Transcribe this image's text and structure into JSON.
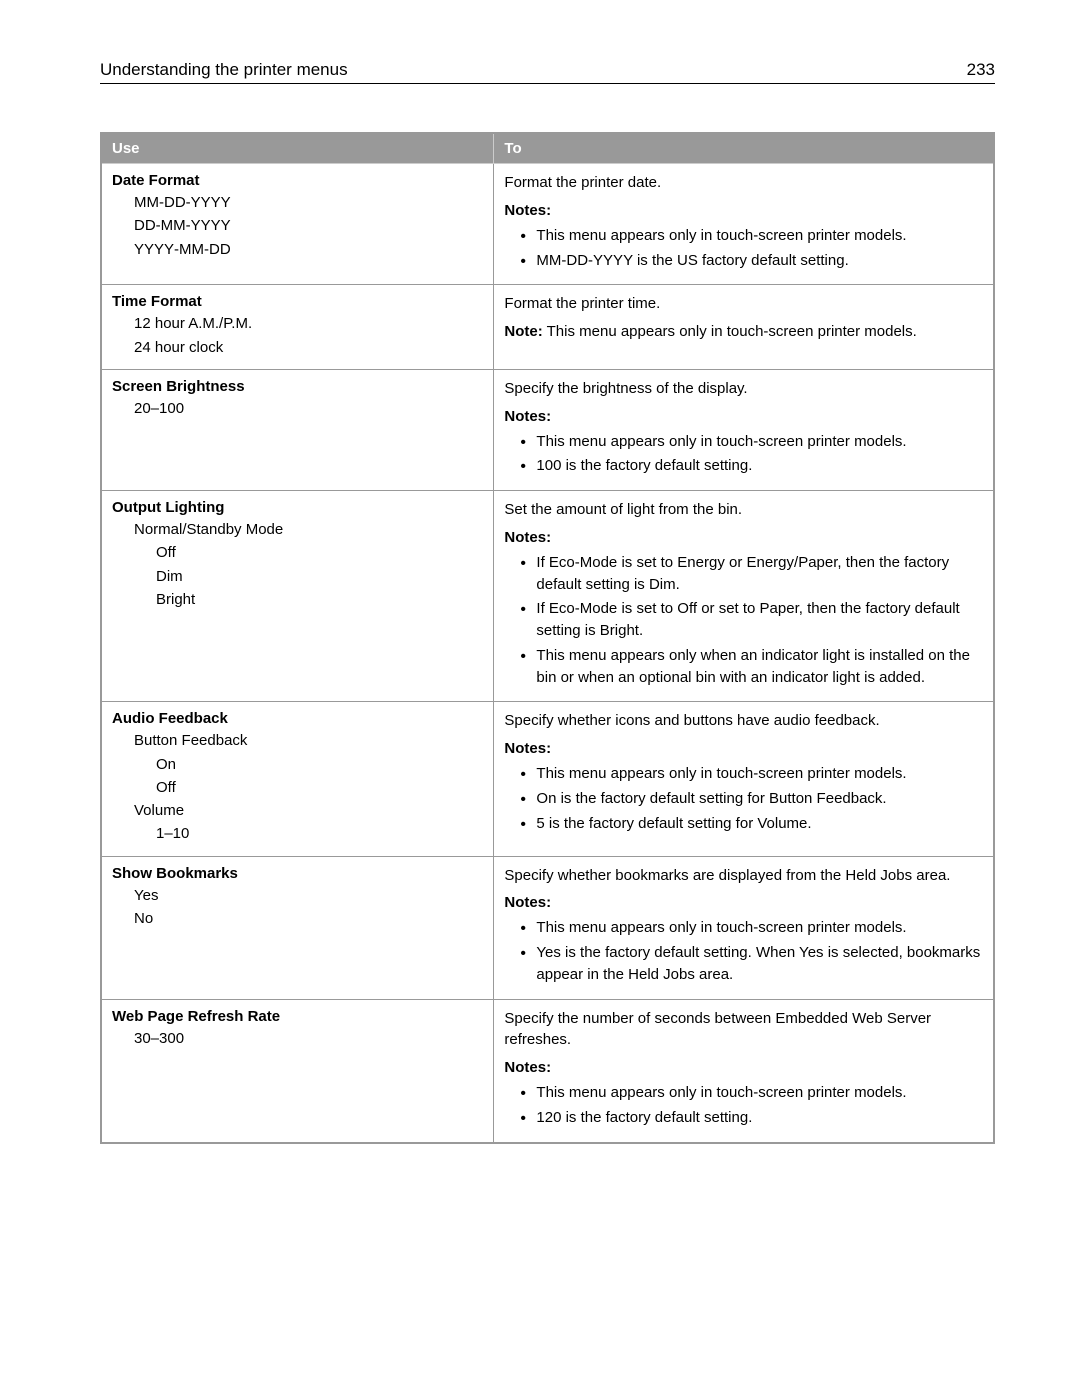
{
  "header": {
    "title": "Understanding the printer menus",
    "page": "233"
  },
  "table": {
    "columns": [
      "Use",
      "To"
    ],
    "rows": [
      {
        "use_heading": "Date Format",
        "options_l1": [
          "MM‑DD‑YYYY",
          "DD‑MM‑YYYY",
          "YYYY‑MM‑DD"
        ],
        "desc": "Format the printer date.",
        "notes_label": "Notes:",
        "notes": [
          "This menu appears only in touch‑screen printer models.",
          "MM‑DD‑YYYY is the US factory default setting."
        ]
      },
      {
        "use_heading": "Time Format",
        "options_l1": [
          "12 hour A.M./P.M.",
          "24 hour clock"
        ],
        "desc": "Format the printer time.",
        "note_prefix": "Note:",
        "note_text": " This menu appears only in touch‑screen printer models."
      },
      {
        "use_heading": "Screen Brightness",
        "options_l1": [
          "20–100"
        ],
        "desc": "Specify the brightness of the display.",
        "notes_label": "Notes:",
        "notes": [
          "This menu appears only in touch‑screen printer models.",
          "100 is the factory default setting."
        ]
      },
      {
        "use_heading": "Output Lighting",
        "options_l1": [
          "Normal/Standby Mode"
        ],
        "options_l2": [
          "Off",
          "Dim",
          "Bright"
        ],
        "desc": "Set the amount of light from the bin.",
        "notes_label": "Notes:",
        "notes": [
          "If Eco‑Mode is set to Energy or Energy/Paper, then the factory default setting is Dim.",
          "If Eco‑Mode is set to Off or set to Paper, then the factory default setting is Bright.",
          "This menu appears only when an indicator light is installed on the bin or when an optional bin with an indicator light is added."
        ]
      },
      {
        "use_heading": "Audio Feedback",
        "groups": [
          {
            "label": "Button Feedback",
            "options": [
              "On",
              "Off"
            ]
          },
          {
            "label": "Volume",
            "options": [
              "1–10"
            ]
          }
        ],
        "desc": "Specify whether icons and buttons have audio feedback.",
        "notes_label": "Notes:",
        "notes": [
          "This menu appears only in touch‑screen printer models.",
          "On is the factory default setting for Button Feedback.",
          "5 is the factory default setting for Volume."
        ]
      },
      {
        "use_heading": "Show Bookmarks",
        "options_l1": [
          "Yes",
          "No"
        ],
        "desc": "Specify whether bookmarks are displayed from the Held Jobs area.",
        "notes_label": "Notes:",
        "notes": [
          "This menu appears only in touch‑screen printer models.",
          "Yes is the factory default setting. When Yes is selected, bookmarks appear in the Held Jobs area."
        ]
      },
      {
        "use_heading": "Web Page Refresh Rate",
        "options_l1": [
          "30–300"
        ],
        "desc": "Specify the number of seconds between Embedded Web Server refreshes.",
        "notes_label": "Notes:",
        "notes": [
          "This menu appears only in touch‑screen printer models.",
          "120 is the factory default setting."
        ]
      }
    ]
  }
}
